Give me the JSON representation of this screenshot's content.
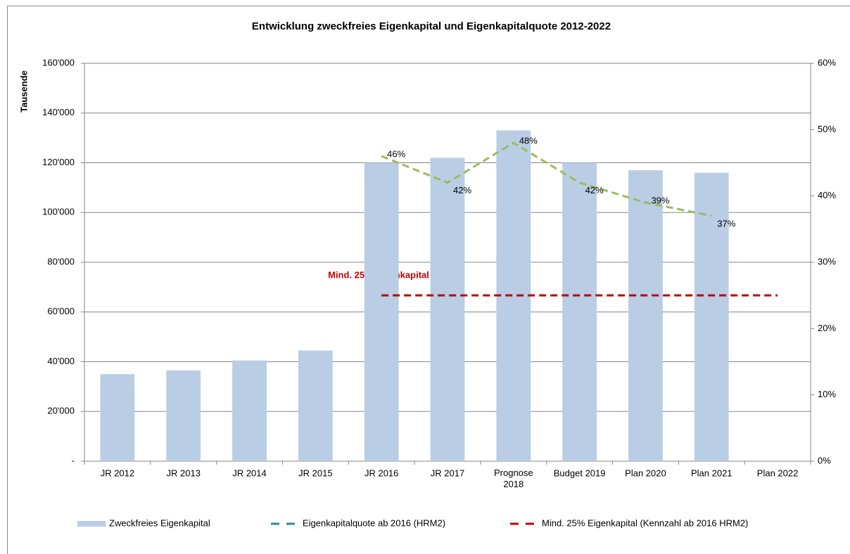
{
  "chart_data": {
    "type": "bar",
    "title": "Entwicklung zweckfreies Eigenkapital und Eigenkapitalquote 2012-2022",
    "y_label": "Tausende",
    "annotation": "Mind. 25% Eigenkapital",
    "categories": [
      "JR 2012",
      "JR 2013",
      "JR 2014",
      "JR 2015",
      "JR 2016",
      "JR 2017",
      "Prognose 2018",
      "Budget 2019",
      "Plan 2020",
      "Plan 2021",
      "Plan 2022"
    ],
    "series": [
      {
        "name": "Zweckfreies Eigenkapital",
        "type": "bar",
        "color": "#b9cde5",
        "values": [
          35000,
          36500,
          40500,
          44500,
          120000,
          122000,
          133000,
          120000,
          117000,
          116000,
          null
        ]
      },
      {
        "name": "Eigenkapitalquote ab 2016 (HRM2)",
        "type": "line",
        "axis": "y2",
        "color": "#9bbb59",
        "legend_color": "#31849b",
        "values": [
          null,
          null,
          null,
          null,
          46,
          42,
          48,
          42,
          39,
          37,
          null
        ],
        "value_labels": [
          null,
          null,
          null,
          null,
          "46%",
          "42%",
          "48%",
          "42%",
          "39%",
          "37%",
          null
        ]
      },
      {
        "name": "Mind. 25% Eigenkapital (Kennzahl ab 2016 HRM2)",
        "type": "line",
        "axis": "y2",
        "color": "#c00000",
        "values": [
          null,
          null,
          null,
          null,
          25,
          25,
          25,
          25,
          25,
          25,
          25
        ]
      }
    ],
    "ylim": [
      0,
      160000
    ],
    "yticks": [
      {
        "value": 0,
        "label": "-"
      },
      {
        "value": 20000,
        "label": "20'000"
      },
      {
        "value": 40000,
        "label": "40'000"
      },
      {
        "value": 60000,
        "label": "60'000"
      },
      {
        "value": 80000,
        "label": "80'000"
      },
      {
        "value": 100000,
        "label": "100'000"
      },
      {
        "value": 120000,
        "label": "120'000"
      },
      {
        "value": 140000,
        "label": "140'000"
      },
      {
        "value": 160000,
        "label": "160'000"
      }
    ],
    "y2lim": [
      0,
      60
    ],
    "y2ticks": [
      {
        "value": 0,
        "label": "0%"
      },
      {
        "value": 10,
        "label": "10%"
      },
      {
        "value": 20,
        "label": "20%"
      },
      {
        "value": 30,
        "label": "30%"
      },
      {
        "value": 40,
        "label": "40%"
      },
      {
        "value": 50,
        "label": "50%"
      },
      {
        "value": 60,
        "label": "60%"
      }
    ],
    "grid": true,
    "legend": "bottom"
  }
}
